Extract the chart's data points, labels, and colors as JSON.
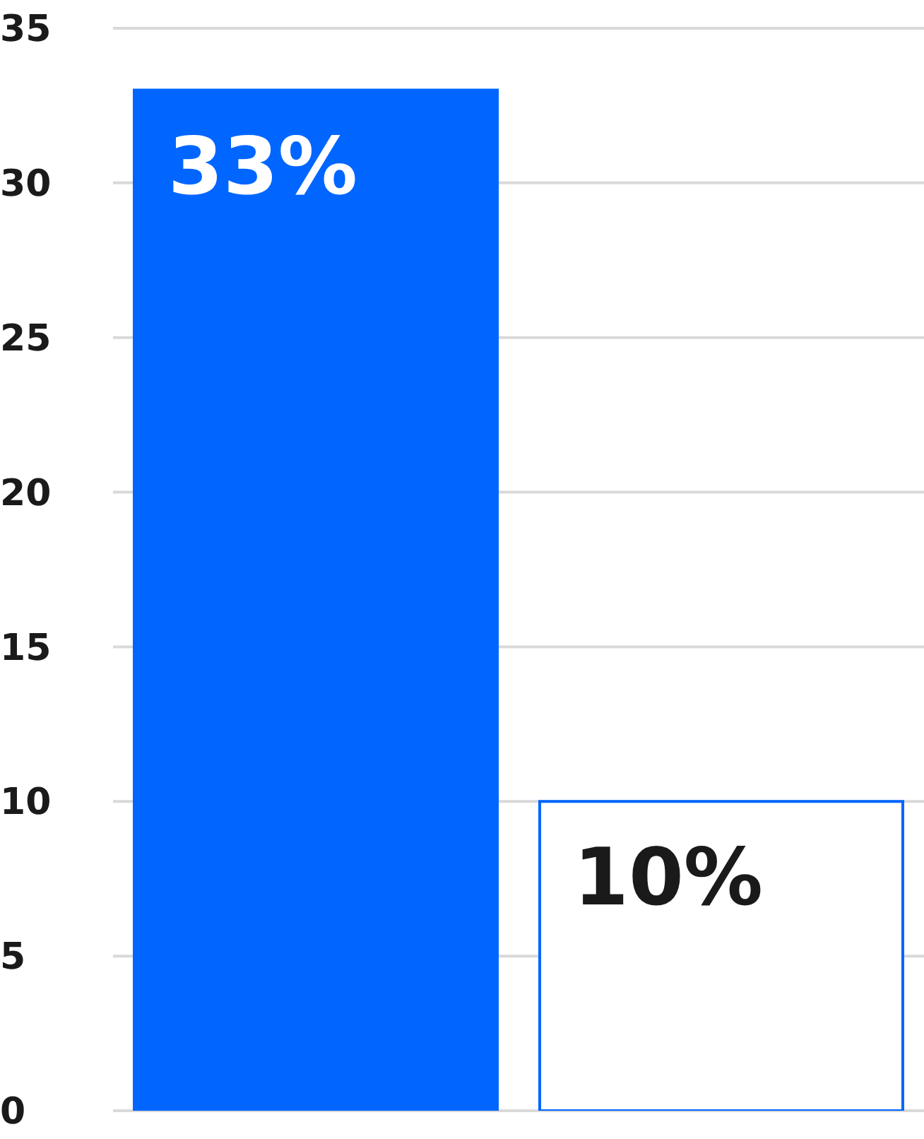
{
  "chart_data": {
    "type": "bar",
    "categories": [
      null,
      null
    ],
    "values": [
      33,
      10
    ],
    "colors": [
      "#0066ff",
      "#ffffff"
    ],
    "value_labels": [
      "33%",
      "10%"
    ],
    "ylim": [
      0,
      35
    ],
    "yticks": [
      0,
      5,
      10,
      15,
      20,
      25,
      30,
      35
    ],
    "grid": "y"
  }
}
